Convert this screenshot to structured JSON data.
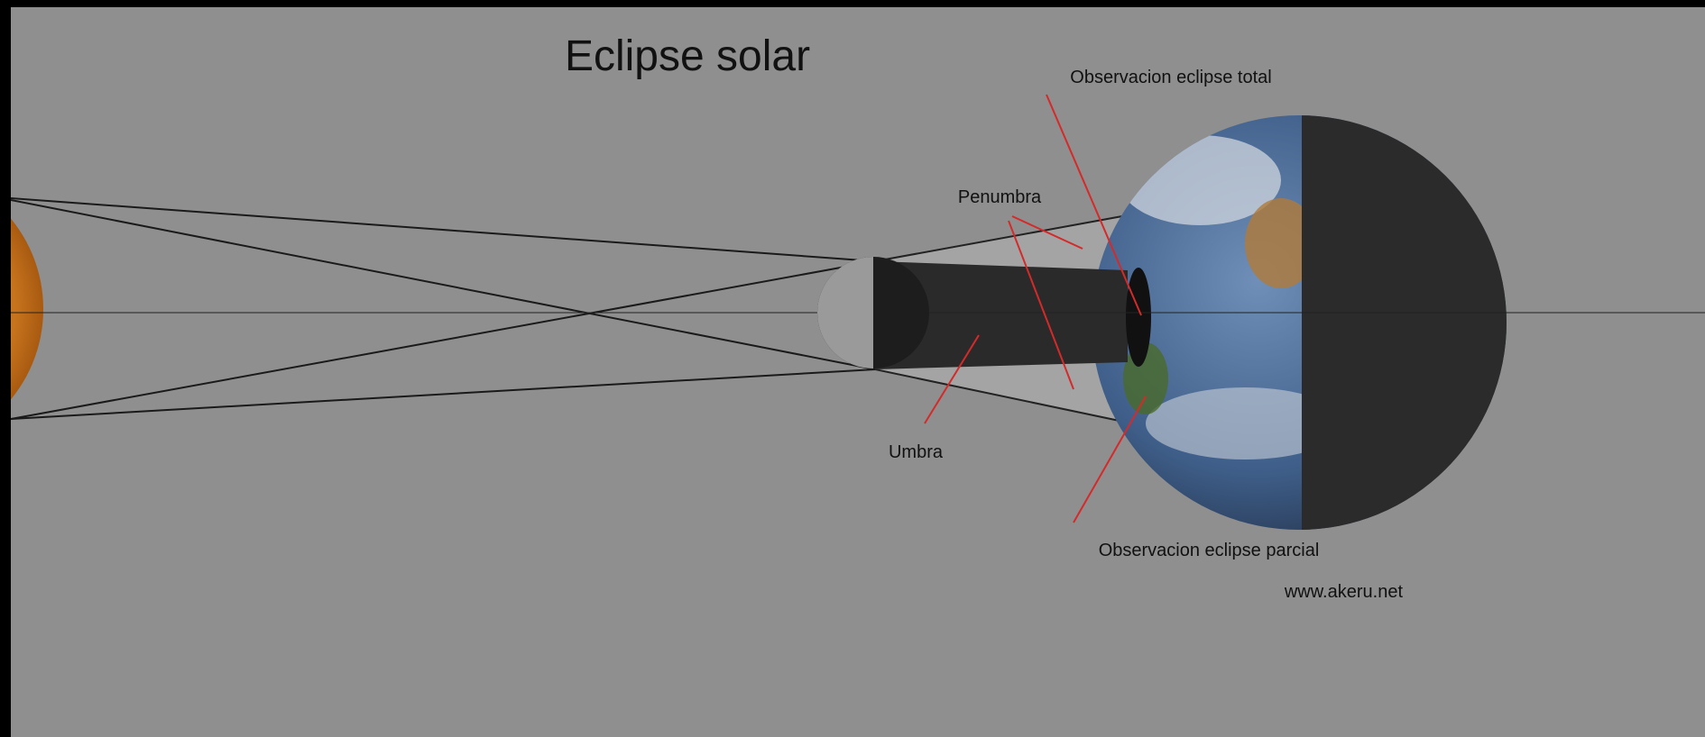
{
  "title": "Eclipse solar",
  "labels": {
    "total": "Observacion eclipse total",
    "penumbra": "Penumbra",
    "umbra": "Umbra",
    "partial": "Observacion eclipse parcial"
  },
  "credit": "www.akeru.net"
}
